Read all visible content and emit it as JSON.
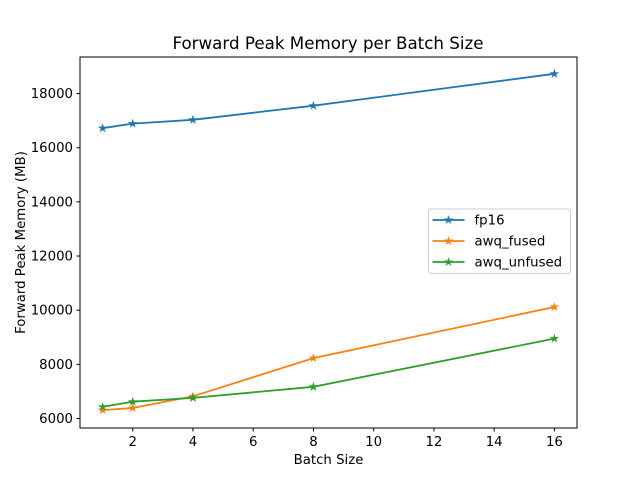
{
  "figure": {
    "background": "#ffffff"
  },
  "chart_data": {
    "type": "line",
    "title": "Forward Peak Memory per Batch Size",
    "xlabel": "Batch Size",
    "ylabel": "Forward Peak Memory (MB)",
    "x": [
      1,
      2,
      4,
      8,
      16
    ],
    "series": [
      {
        "name": "fp16",
        "color": "#1f77b4",
        "marker": "star",
        "values": [
          16720,
          16890,
          17030,
          17550,
          18730
        ]
      },
      {
        "name": "awq_fused",
        "color": "#ff7f0e",
        "marker": "star",
        "values": [
          6310,
          6390,
          6820,
          8230,
          10120
        ]
      },
      {
        "name": "awq_unfused",
        "color": "#2ca02c",
        "marker": "star",
        "values": [
          6430,
          6620,
          6760,
          7170,
          8950
        ]
      }
    ],
    "xticks": [
      2,
      4,
      6,
      8,
      10,
      12,
      14,
      16
    ],
    "yticks": [
      6000,
      8000,
      10000,
      12000,
      14000,
      16000,
      18000
    ],
    "xlim": [
      0.25,
      16.75
    ],
    "ylim": [
      5650,
      19350
    ],
    "grid": false,
    "legend": {
      "position": "center-right",
      "entries": [
        "fp16",
        "awq_fused",
        "awq_unfused"
      ],
      "border_color": "#cccccc",
      "background": "#ffffff"
    },
    "frame_color": "#000000"
  }
}
